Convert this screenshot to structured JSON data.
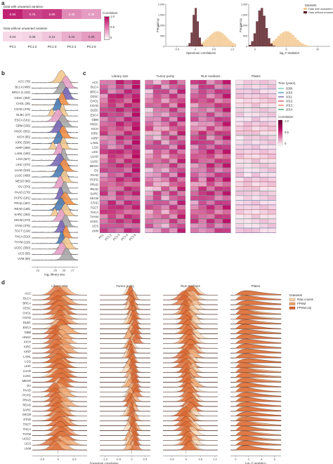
{
  "panel_labels": {
    "a": "a",
    "b": "b",
    "c": "c",
    "d": "d"
  },
  "panel_a": {
    "heatmap": {
      "row_with": "Data with unwanted variation",
      "row_without": "Data without unwanted variation",
      "pcs": [
        "PC1",
        "PC1:2",
        "PC1:3",
        "PC1:4",
        "PC1:5"
      ],
      "with_values": [
        "0.90",
        "0.75",
        "0.80",
        "0.45",
        "0.38"
      ],
      "without_values": [
        "0.04",
        "0.06",
        "0.12",
        "0.22",
        "0.30"
      ],
      "legend_title": "Correlation",
      "legend_ticks": [
        "1.0",
        "0.5",
        "0"
      ]
    },
    "hist1": {
      "xlabel": "Spearman correlations",
      "ylabel": "Frequency",
      "xticks": [
        "-0.5",
        "0",
        "0.5",
        "1.0"
      ],
      "yticks": [
        "0",
        "500",
        "1,000",
        "1,500",
        "2,000"
      ]
    },
    "hist2": {
      "xlabel": "log₂ F-statistics",
      "ylabel": "Frequency",
      "xticks": [
        "0",
        "5",
        "10"
      ],
      "yticks": [
        "0",
        "500",
        "1,000",
        "1,500",
        "2,000"
      ],
      "legend_title": "Datasets",
      "legend": [
        "Data with unwanted variation",
        "Data without unwanted variation"
      ]
    }
  },
  "chart_data": [
    {
      "type": "area",
      "title": "",
      "xlabel": "Spearman correlations",
      "ylabel": "Frequency",
      "ylim": [
        0,
        2000
      ],
      "series": [
        {
          "name": "Data with unwanted variation",
          "peak_x": 0.6
        },
        {
          "name": "Data without unwanted variation",
          "peak_x": 0.0
        }
      ]
    },
    {
      "type": "area",
      "title": "",
      "xlabel": "log₂ F-statistics",
      "ylabel": "Frequency",
      "ylim": [
        0,
        2000
      ],
      "series": [
        {
          "name": "Data with unwanted variation",
          "peak_x": 5
        },
        {
          "name": "Data without unwanted variation",
          "peak_x": 1
        }
      ]
    }
  ],
  "panel_b": {
    "cancers": [
      "ACC (78)",
      "BLCA (408)",
      "BRCA (1,102)",
      "CESC (304)",
      "CHOL (36)",
      "COAD (478)",
      "DLBC (47)",
      "ESCA (161)",
      "GBM (156)",
      "HNSC (501)",
      "KICH (65)",
      "KIRC (534)",
      "KIRP (289)",
      "LAML (150)",
      "LGG (527)",
      "LIHC (370)",
      "LUAD (516)",
      "LUSC (499)",
      "MESO (86)",
      "OV (379)",
      "PAAD (178)",
      "PCPG (181)",
      "PRAD (497)",
      "READ (165)",
      "SARC (262)",
      "SKCM (470)",
      "STAD (375)",
      "TGCT (134)",
      "THCA (510)",
      "THYM (118)",
      "UCEC (550)",
      "UCS (56)",
      "UVM (80)"
    ],
    "xticks": [
      "23",
      "25",
      "26",
      "27"
    ],
    "xlabel": "log₂ library size"
  },
  "panel_c": {
    "groups": [
      "Library size",
      "Tumor purity",
      "RLE medians",
      "Plates"
    ],
    "cancers": [
      "ACC",
      "BLCA",
      "BRCA",
      "CESC",
      "CHOL",
      "COAD",
      "DLBC",
      "ESCA",
      "GBM",
      "HNSC",
      "KICH",
      "KIRC",
      "KIRP",
      "LAML",
      "LGG",
      "LIHC",
      "LUAD",
      "LUSC",
      "MESO",
      "OV",
      "PAAD",
      "PCPG",
      "PRAD",
      "READ",
      "SARC",
      "SKCM",
      "STAD",
      "TGCT",
      "THCA",
      "THYM",
      "UCEC",
      "UCS",
      "UVM"
    ],
    "pcs": [
      "PC1",
      "PC1:2",
      "PC1:3",
      "PC1:4",
      "PC1:5"
    ],
    "time_legend_title": "Time (years)",
    "time_legend": [
      {
        "label": "2009",
        "color": "#66c2a5"
      },
      {
        "label": "2010",
        "color": "#3288bd"
      },
      {
        "label": "2011",
        "color": "#5e4fa2"
      },
      {
        "label": "2012",
        "color": "#d53e4f"
      },
      {
        "label": "2013",
        "color": "#f46d43"
      },
      {
        "label": "2014",
        "color": "#1a9850"
      }
    ],
    "corr_legend_title": "Correlation",
    "corr_ticks": [
      "1.0",
      "0.5",
      "0"
    ]
  },
  "panel_d": {
    "groups": [
      "Library size",
      "Tumor purity",
      "RLE medians",
      "Plates"
    ],
    "cancers": [
      "ACC",
      "BLCA",
      "BRCA",
      "CESC",
      "CHOL",
      "COAD",
      "DLBC",
      "ESCA",
      "GBM",
      "HNSC",
      "KICH",
      "KIRC",
      "KIRP",
      "LAML",
      "LGG",
      "LIHC",
      "LUAD",
      "LUSC",
      "MESO",
      "OV",
      "PAAD",
      "PCPG",
      "PRAD",
      "READ",
      "SARC",
      "SKCM",
      "STAD",
      "TGCT",
      "THCA",
      "THYM",
      "UCEC",
      "UCS",
      "UVM"
    ],
    "corr_xticks": [
      "-0.5",
      "0",
      "0.5"
    ],
    "purity_xticks": [
      "-1.0",
      "-0.5",
      "0",
      "0.5"
    ],
    "rle_xticks": [
      "-0.5",
      "0",
      "0.5",
      "1.0"
    ],
    "plates_xticks": [
      "0",
      "2",
      "4",
      "6"
    ],
    "xlabel_corr": "Spearman correlation",
    "xlabel_f": "log₂ F-statistics",
    "legend_title": "Datasets",
    "legend": [
      {
        "label": "Raw counts",
        "color": "#f6d5b0"
      },
      {
        "label": "FPKM",
        "color": "#f0a068"
      },
      {
        "label": "FPKM.UQ",
        "color": "#d9622b"
      }
    ]
  },
  "colors": {
    "magenta_dark": "#c7126b",
    "magenta_light": "#f4dcea",
    "hist_tan": "#f3c88f",
    "hist_brown": "#5a1f27"
  }
}
